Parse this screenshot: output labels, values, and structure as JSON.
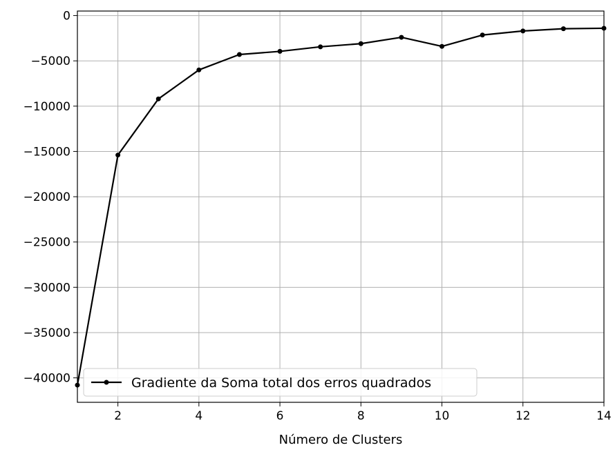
{
  "chart_data": {
    "type": "line",
    "title": "",
    "xlabel": "Número de Clusters",
    "ylabel": "",
    "xlim": [
      1,
      14
    ],
    "ylim": [
      -42700,
      500
    ],
    "x_ticks": [
      2,
      4,
      6,
      8,
      10,
      12,
      14
    ],
    "y_ticks": [
      0,
      -5000,
      -10000,
      -15000,
      -20000,
      -25000,
      -30000,
      -35000,
      -40000
    ],
    "x_tick_labels": [
      "2",
      "4",
      "6",
      "8",
      "10",
      "12",
      "14"
    ],
    "y_tick_labels": [
      "0",
      "−5000",
      "−10000",
      "−15000",
      "−20000",
      "−25000",
      "−30000",
      "−35000",
      "−40000"
    ],
    "grid": true,
    "legend_position": "lower-left",
    "series": [
      {
        "name": "Gradiente da Soma total dos erros quadrados",
        "color": "#000000",
        "marker": "circle",
        "x": [
          1,
          2,
          3,
          4,
          5,
          6,
          7,
          8,
          9,
          10,
          11,
          12,
          13,
          14
        ],
        "y": [
          -40800,
          -15400,
          -9200,
          -6000,
          -4300,
          -3950,
          -3450,
          -3100,
          -2400,
          -3400,
          -2150,
          -1700,
          -1450,
          -1400
        ]
      }
    ]
  }
}
